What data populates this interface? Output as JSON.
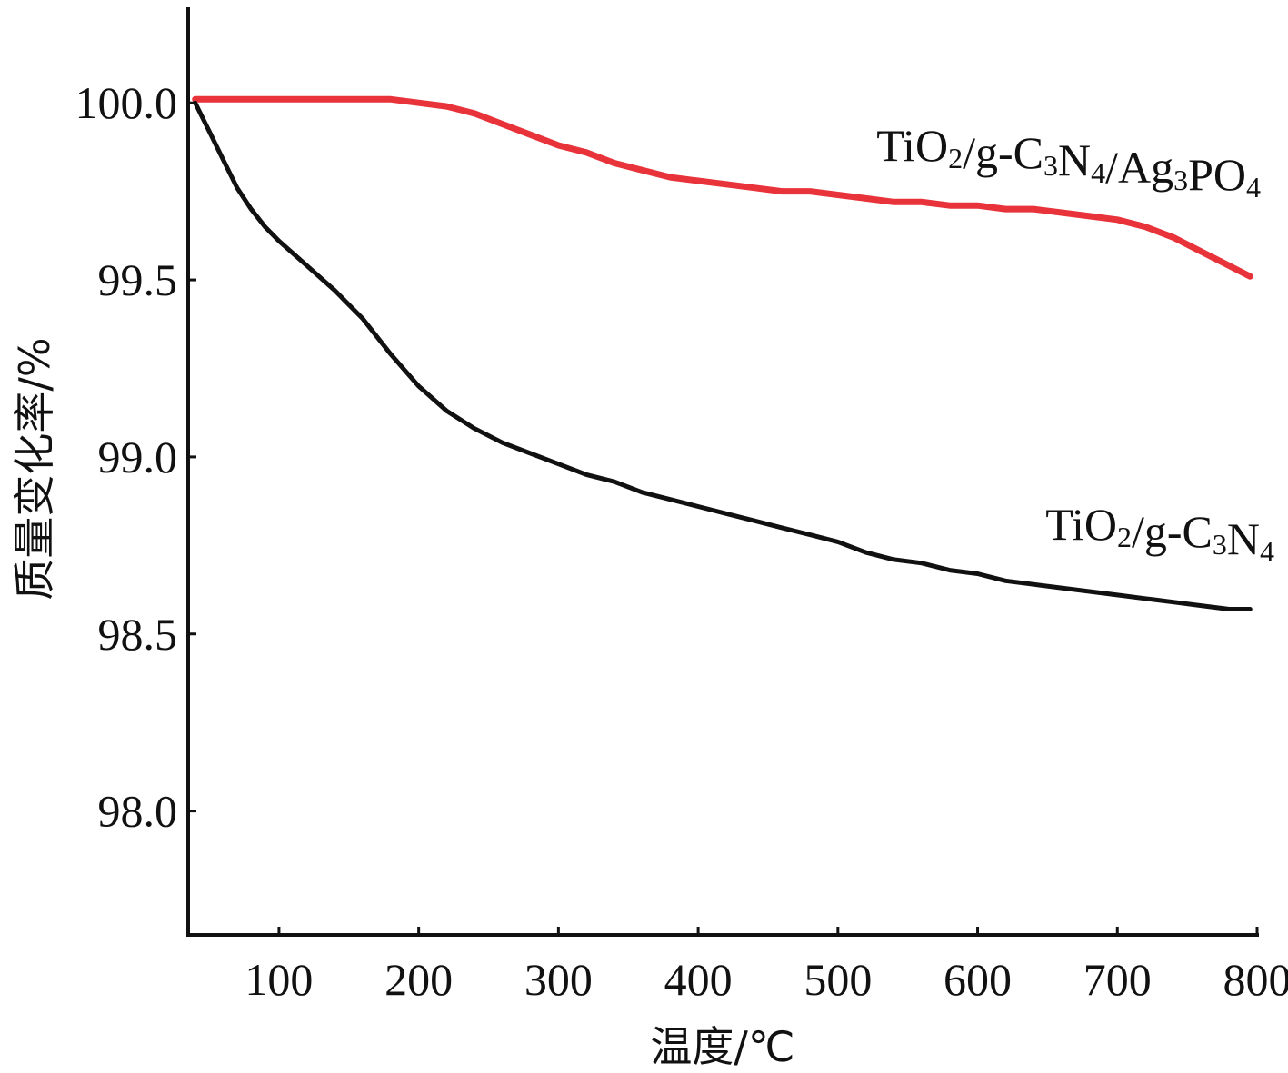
{
  "chart_data": {
    "type": "line",
    "title": "",
    "xlabel": "温度/℃",
    "ylabel": "质量变化率/%",
    "xlim": [
      35,
      800
    ],
    "ylim": [
      97.65,
      100.27
    ],
    "xticks": [
      100,
      200,
      300,
      400,
      500,
      600,
      700,
      800
    ],
    "yticks": [
      98.0,
      98.5,
      99.0,
      99.5,
      100.0
    ],
    "xtick_labels": [
      "100",
      "200",
      "300",
      "400",
      "500",
      "600",
      "700",
      "800"
    ],
    "ytick_labels": [
      "98.0",
      "98.5",
      "99.0",
      "99.5",
      "100.0"
    ],
    "grid": false,
    "legend": "inline labels at line ends",
    "series": [
      {
        "name": "TiO2/g-C3N4/Ag3PO4",
        "label_parts": [
          {
            "t": "TiO"
          },
          {
            "t": "2",
            "sub": true
          },
          {
            "t": "/g-C"
          },
          {
            "t": "3",
            "sub": true
          },
          {
            "t": "N"
          },
          {
            "t": "4",
            "sub": true
          },
          {
            "t": "/Ag"
          },
          {
            "t": "3",
            "sub": true
          },
          {
            "t": "PO"
          },
          {
            "t": "4",
            "sub": true
          }
        ],
        "color": "#e8333a",
        "x": [
          40,
          60,
          80,
          100,
          120,
          140,
          160,
          180,
          200,
          220,
          240,
          260,
          280,
          300,
          320,
          340,
          360,
          380,
          400,
          420,
          440,
          460,
          480,
          500,
          520,
          540,
          560,
          580,
          600,
          620,
          640,
          660,
          680,
          700,
          720,
          740,
          760,
          780,
          795
        ],
        "y": [
          100.01,
          100.01,
          100.01,
          100.01,
          100.01,
          100.01,
          100.01,
          100.01,
          100.0,
          99.99,
          99.97,
          99.94,
          99.91,
          99.88,
          99.86,
          99.83,
          99.81,
          99.79,
          99.78,
          99.77,
          99.76,
          99.75,
          99.75,
          99.74,
          99.73,
          99.72,
          99.72,
          99.71,
          99.71,
          99.7,
          99.7,
          99.69,
          99.68,
          99.67,
          99.65,
          99.62,
          99.58,
          99.54,
          99.51
        ]
      },
      {
        "name": "TiO2/g-C3N4",
        "label_parts": [
          {
            "t": "TiO"
          },
          {
            "t": "2",
            "sub": true
          },
          {
            "t": "/g-C"
          },
          {
            "t": "3",
            "sub": true
          },
          {
            "t": "N"
          },
          {
            "t": "4",
            "sub": true
          }
        ],
        "color": "#111111",
        "x": [
          40,
          50,
          60,
          70,
          80,
          90,
          100,
          120,
          140,
          160,
          180,
          200,
          220,
          240,
          260,
          280,
          300,
          320,
          340,
          360,
          380,
          400,
          420,
          440,
          460,
          480,
          500,
          520,
          540,
          560,
          580,
          600,
          620,
          640,
          660,
          680,
          700,
          720,
          740,
          760,
          780,
          795
        ],
        "y": [
          100.0,
          99.92,
          99.84,
          99.76,
          99.7,
          99.65,
          99.61,
          99.54,
          99.47,
          99.39,
          99.29,
          99.2,
          99.13,
          99.08,
          99.04,
          99.01,
          98.98,
          98.95,
          98.93,
          98.9,
          98.88,
          98.86,
          98.84,
          98.82,
          98.8,
          98.78,
          98.76,
          98.73,
          98.71,
          98.7,
          98.68,
          98.67,
          98.65,
          98.64,
          98.63,
          98.62,
          98.61,
          98.6,
          98.59,
          98.58,
          98.57,
          98.57
        ]
      }
    ]
  }
}
